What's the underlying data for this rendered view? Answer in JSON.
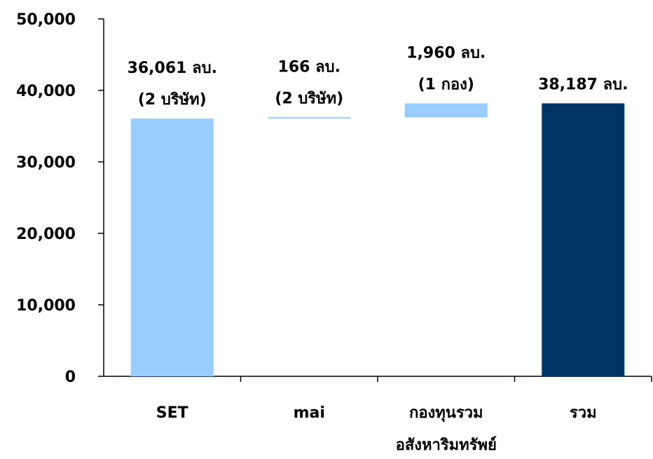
{
  "chart_data": {
    "type": "bar",
    "subtype": "waterfall",
    "categories": [
      [
        "SET"
      ],
      [
        "mai"
      ],
      [
        "กองทุนรวม",
        "อสังหาริมทรัพย์"
      ],
      [
        "รวม"
      ]
    ],
    "bars": [
      {
        "base": 0,
        "value": 36061,
        "color": "#99CCFF",
        "label_lines": [
          "36,061 ลบ.",
          "(2 บริษัท)"
        ]
      },
      {
        "base": 36061,
        "value": 166,
        "color": "#99CCFF",
        "label_lines": [
          "166 ลบ.",
          "(2 บริษัท)"
        ]
      },
      {
        "base": 36227,
        "value": 1960,
        "color": "#99CCFF",
        "label_lines": [
          "1,960 ลบ.",
          "(1 กอง)"
        ]
      },
      {
        "base": 0,
        "value": 38187,
        "color": "#003366",
        "label_lines": [
          "38,187 ลบ."
        ]
      }
    ],
    "ylim": [
      0,
      50000
    ],
    "yticks": [
      0,
      10000,
      20000,
      30000,
      40000,
      50000
    ],
    "ytick_labels": [
      "0",
      "10,000",
      "20,000",
      "30,000",
      "40,000",
      "50,000"
    ],
    "grid": false,
    "legend": "none"
  }
}
